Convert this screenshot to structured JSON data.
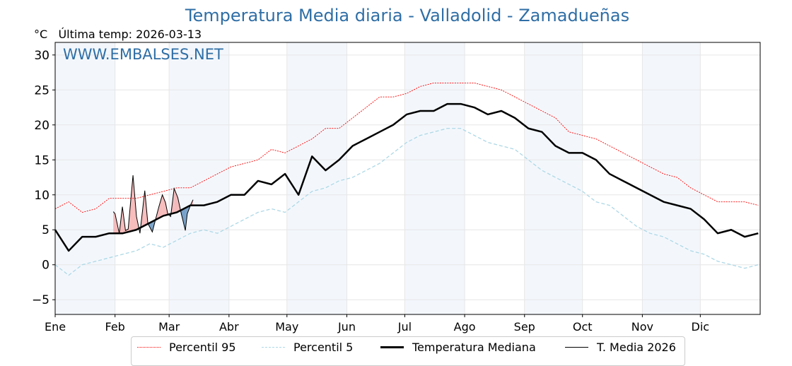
{
  "chart_data": {
    "type": "line",
    "title": "Temperatura Media diaria - Valladolid - Zamadueñas",
    "unit_label": "°C",
    "last_temp_label": "Última temp: 2026-03-13",
    "watermark": "WWW.EMBALSES.NET",
    "xlabel": "",
    "ylabel": "°C",
    "xlim": [
      0,
      365
    ],
    "ylim": [
      -7.1,
      31.8
    ],
    "yticks": [
      -5,
      0,
      5,
      10,
      15,
      20,
      25,
      30
    ],
    "month_labels": [
      "Ene",
      "Feb",
      "Mar",
      "Abr",
      "May",
      "Jun",
      "Jul",
      "Ago",
      "Sep",
      "Oct",
      "Nov",
      "Dic"
    ],
    "month_start_days": [
      0,
      31,
      59,
      90,
      120,
      151,
      181,
      212,
      243,
      273,
      304,
      334
    ],
    "grid": true,
    "legend_placement": "bottom-center",
    "colors": {
      "p95": "#ff0000",
      "p5": "#add8e6",
      "median": "#000000",
      "current": "#000000",
      "above": "#f4a6a6",
      "below": "#4f86b8",
      "band": "#f3f7fc",
      "title": "#2f6ea5"
    },
    "series": [
      {
        "name": "Percentil 95",
        "key": "p95",
        "days": [
          0,
          7,
          14,
          21,
          28,
          35,
          42,
          49,
          56,
          63,
          70,
          77,
          84,
          91,
          98,
          105,
          112,
          119,
          126,
          133,
          140,
          147,
          154,
          161,
          168,
          175,
          182,
          189,
          196,
          203,
          210,
          217,
          224,
          231,
          238,
          245,
          252,
          259,
          266,
          273,
          280,
          287,
          294,
          301,
          308,
          315,
          322,
          329,
          336,
          343,
          350,
          357,
          364
        ],
        "values": [
          8,
          9,
          7.5,
          8,
          9.5,
          9.5,
          9.5,
          10,
          10.5,
          11,
          11,
          12,
          13,
          14,
          14.5,
          15,
          16.5,
          16,
          17,
          18,
          19.5,
          19.5,
          21,
          22.5,
          24,
          24,
          24.5,
          25.5,
          26,
          26,
          26,
          26,
          25.5,
          25,
          24,
          23,
          22,
          21,
          19,
          18.5,
          18,
          17,
          16,
          15,
          14,
          13,
          12.5,
          11,
          10,
          9,
          9,
          9,
          8.5
        ]
      },
      {
        "name": "Percentil 5",
        "key": "p5",
        "days": [
          0,
          7,
          14,
          21,
          28,
          35,
          42,
          49,
          56,
          63,
          70,
          77,
          84,
          91,
          98,
          105,
          112,
          119,
          126,
          133,
          140,
          147,
          154,
          161,
          168,
          175,
          182,
          189,
          196,
          203,
          210,
          217,
          224,
          231,
          238,
          245,
          252,
          259,
          266,
          273,
          280,
          287,
          294,
          301,
          308,
          315,
          322,
          329,
          336,
          343,
          350,
          357,
          364
        ],
        "values": [
          0,
          -1.5,
          0,
          0.5,
          1,
          1.5,
          2,
          3,
          2.5,
          3.5,
          4.5,
          5,
          4.5,
          5.5,
          6.5,
          7.5,
          8,
          7.5,
          9,
          10.5,
          11,
          12,
          12.5,
          13.5,
          14.5,
          16,
          17.5,
          18.5,
          19,
          19.5,
          19.5,
          18.5,
          17.5,
          17,
          16.5,
          15,
          13.5,
          12.5,
          11.5,
          10.5,
          9,
          8.5,
          7,
          5.5,
          4.5,
          4,
          3,
          2,
          1.5,
          0.5,
          0,
          -0.5,
          0
        ]
      },
      {
        "name": "Temperatura Mediana",
        "key": "median",
        "days": [
          0,
          7,
          14,
          21,
          28,
          35,
          42,
          49,
          56,
          63,
          70,
          77,
          84,
          91,
          98,
          105,
          112,
          119,
          126,
          133,
          140,
          147,
          154,
          161,
          168,
          175,
          182,
          189,
          196,
          203,
          210,
          217,
          224,
          231,
          238,
          245,
          252,
          259,
          266,
          273,
          280,
          287,
          294,
          301,
          308,
          315,
          322,
          329,
          336,
          343,
          350,
          357,
          364
        ],
        "values": [
          5,
          2,
          4,
          4,
          4.5,
          4.5,
          5,
          6,
          7,
          7.5,
          8.5,
          8.5,
          9,
          10,
          10,
          12,
          11.5,
          13,
          10,
          15.5,
          13.5,
          15,
          17,
          18,
          19,
          20,
          21.5,
          22,
          22,
          23,
          23,
          22.5,
          21.5,
          22,
          21,
          19.5,
          19,
          17,
          16,
          16,
          15,
          13,
          12,
          11,
          10,
          9,
          8.5,
          8,
          6.5,
          4.5,
          5,
          4,
          4.5
        ]
      },
      {
        "name": "T. Media 2026",
        "key": "current",
        "days": [
          30.1,
          31,
          33.2,
          34.8,
          36.4,
          37.8,
          40.3,
          42.1,
          43.9,
          46.4,
          48,
          50.3,
          51.9,
          53.7,
          55.5,
          57.1,
          58.3,
          59.8,
          61.6,
          63.5,
          65.3,
          67.4,
          68.4,
          70.2,
          71.4
        ],
        "values": [
          7.6,
          7.3,
          4.5,
          8.3,
          4.9,
          5.1,
          12.8,
          6.9,
          4.5,
          10.6,
          5.9,
          4.7,
          6.4,
          8.3,
          10,
          8.9,
          7.3,
          6.9,
          10.9,
          9.6,
          7.3,
          4.9,
          7.3,
          8.6,
          9.3
        ]
      }
    ]
  }
}
